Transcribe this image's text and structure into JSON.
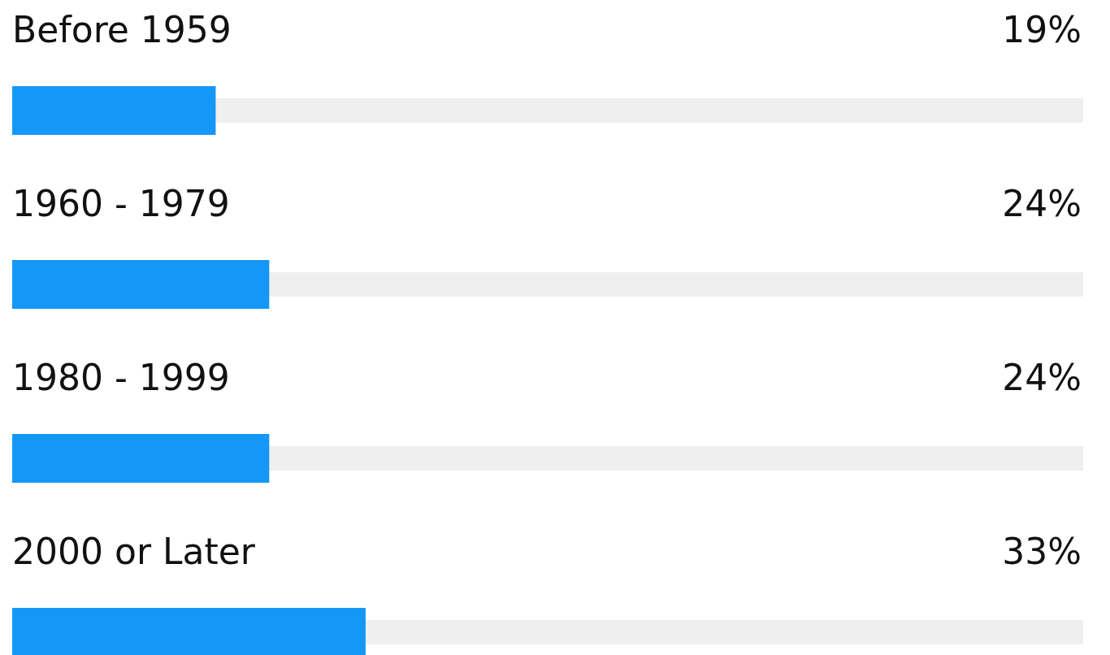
{
  "chart_data": {
    "type": "bar",
    "orientation": "horizontal",
    "categories": [
      "Before 1959",
      "1960 - 1979",
      "1980 - 1999",
      "2000 or Later"
    ],
    "values": [
      19,
      24,
      24,
      33
    ],
    "value_labels": [
      "19%",
      "24%",
      "24%",
      "33%"
    ],
    "color": "#1597f7",
    "xlim": [
      0,
      100
    ],
    "bands": [
      {
        "axis": "y",
        "from": "Before 1959",
        "to": "Before 1959",
        "color": "#efefef"
      },
      {
        "axis": "y",
        "from": "1960 - 1979",
        "to": "1960 - 1979",
        "color": "#efefef"
      },
      {
        "axis": "y",
        "from": "1980 - 1999",
        "to": "1980 - 1999",
        "color": "#efefef"
      },
      {
        "axis": "y",
        "from": "2000 or Later",
        "to": "2000 or Later",
        "color": "#efefef"
      }
    ]
  }
}
